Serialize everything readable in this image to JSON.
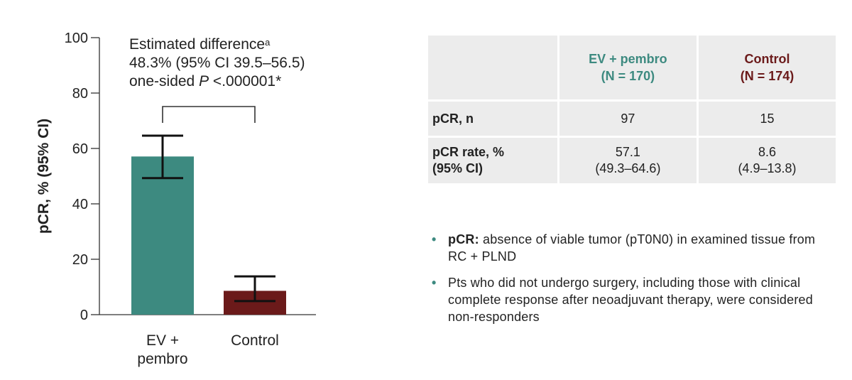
{
  "chart_data": {
    "type": "bar",
    "categories": [
      "EV +\npembro",
      "Control"
    ],
    "values": [
      57.1,
      8.6
    ],
    "ci_lower": [
      49.3,
      4.9
    ],
    "ci_upper": [
      64.6,
      13.8
    ],
    "colors": [
      "#3d8a80",
      "#6b1a1a"
    ],
    "ylabel": "pCR, % (95% CI)",
    "ylim": [
      0,
      100
    ],
    "yticks": [
      0,
      20,
      40,
      60,
      80,
      100
    ],
    "annotation": {
      "line1": "Estimated difference",
      "line1_sup": "a",
      "line2": "48.3% (95% CI 39.5–56.5)",
      "line3_prefix": "one-sided ",
      "line3_italic": "P",
      "line3_suffix": " <.000001*"
    }
  },
  "table": {
    "headers": [
      {
        "line1": "EV + pembro",
        "line2": "(N = 170)",
        "color": "#3d8a80"
      },
      {
        "line1": "Control",
        "line2": "(N = 174)",
        "color": "#6b1a1a"
      }
    ],
    "rows": [
      {
        "label_line1": "pCR, n",
        "label_line2": "",
        "ev_line1": "97",
        "ev_line2": "",
        "ctrl_line1": "15",
        "ctrl_line2": ""
      },
      {
        "label_line1": "pCR rate, %",
        "label_line2": "(95% CI)",
        "ev_line1": "57.1",
        "ev_line2": "(49.3–64.6)",
        "ctrl_line1": "8.6",
        "ctrl_line2": "(4.9–13.8)"
      }
    ]
  },
  "notes": [
    {
      "term": "pCR:",
      "text": " absence of viable tumor (pT0N0) in examined tissue from RC + PLND"
    },
    {
      "term": "",
      "text": "Pts who did not undergo surgery, including those with clinical complete response after neoadjuvant therapy, were considered non-responders"
    }
  ],
  "bullet_glyph": "•"
}
